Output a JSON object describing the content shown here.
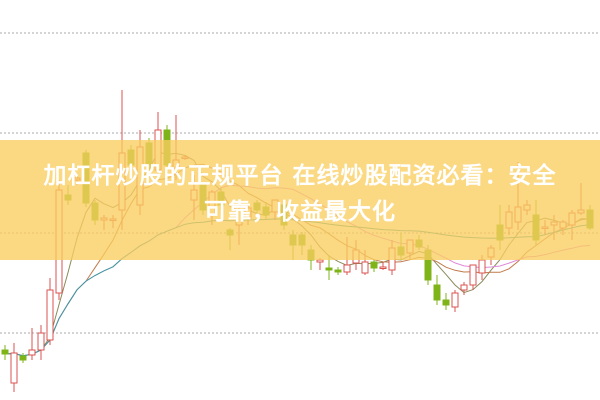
{
  "headline": {
    "line1": "加杠杆炒股的正规平台 在线炒股配资必看：安全",
    "line2": "可靠，收益最大化"
  },
  "colors": {
    "up": "#d9534f",
    "down": "#7fb418",
    "banner": "#facd5f",
    "grid": "#aaaaaa",
    "ma": [
      "#8a8a5a",
      "#c07a4a",
      "#e08ad8",
      "#3a9aa0"
    ]
  },
  "chart_data": {
    "type": "candlestick",
    "title": "",
    "xlabel": "",
    "ylabel": "",
    "grid": true,
    "axis_labels_shown": false,
    "ylim": [
      0,
      400
    ],
    "moving_averages": [
      5,
      10,
      20,
      60
    ],
    "candles_ohlc": [
      [
        50,
        55,
        40,
        46
      ],
      [
        17,
        57,
        8,
        47
      ],
      [
        44,
        47,
        37,
        40
      ],
      [
        45,
        72,
        40,
        50
      ],
      [
        50,
        75,
        40,
        67
      ],
      [
        60,
        122,
        55,
        110
      ],
      [
        107,
        220,
        100,
        210
      ],
      [
        205,
        215,
        195,
        200
      ],
      [
        220,
        225,
        215,
        222
      ],
      [
        247,
        250,
        193,
        197
      ],
      [
        197,
        200,
        175,
        180
      ],
      [
        180,
        185,
        170,
        182
      ],
      [
        180,
        185,
        172,
        181
      ],
      [
        190,
        310,
        170,
        247
      ],
      [
        250,
        255,
        230,
        235
      ],
      [
        195,
        270,
        185,
        253
      ],
      [
        257,
        262,
        230,
        235
      ],
      [
        230,
        288,
        220,
        270
      ],
      [
        270,
        275,
        230,
        235
      ],
      [
        232,
        285,
        220,
        240
      ],
      [
        243,
        245,
        240,
        243
      ],
      [
        200,
        225,
        180,
        210
      ],
      [
        215,
        218,
        185,
        190
      ],
      [
        185,
        210,
        175,
        208
      ],
      [
        208,
        212,
        190,
        195
      ],
      [
        170,
        172,
        150,
        165
      ],
      [
        175,
        200,
        155,
        190
      ],
      [
        182,
        195,
        175,
        192
      ],
      [
        197,
        200,
        185,
        190
      ],
      [
        193,
        198,
        180,
        185
      ],
      [
        188,
        200,
        180,
        200
      ],
      [
        195,
        200,
        170,
        175
      ],
      [
        165,
        170,
        140,
        155
      ],
      [
        165,
        168,
        145,
        155
      ],
      [
        150,
        155,
        130,
        140
      ],
      [
        138,
        142,
        130,
        140
      ],
      [
        132,
        145,
        120,
        130
      ],
      [
        130,
        133,
        125,
        128
      ],
      [
        128,
        163,
        125,
        135
      ],
      [
        137,
        160,
        130,
        150
      ],
      [
        127,
        150,
        125,
        138
      ],
      [
        138,
        140,
        128,
        132
      ],
      [
        133,
        138,
        130,
        133
      ],
      [
        130,
        160,
        125,
        152
      ],
      [
        153,
        167,
        140,
        145
      ],
      [
        147,
        160,
        140,
        160
      ],
      [
        160,
        165,
        150,
        153
      ],
      [
        150,
        155,
        115,
        120
      ],
      [
        115,
        125,
        95,
        100
      ],
      [
        100,
        107,
        90,
        95
      ],
      [
        93,
        110,
        88,
        107
      ],
      [
        110,
        118,
        105,
        115
      ],
      [
        115,
        135,
        110,
        135
      ],
      [
        127,
        145,
        120,
        140
      ],
      [
        143,
        155,
        135,
        152
      ],
      [
        175,
        195,
        150,
        160
      ],
      [
        172,
        195,
        165,
        188
      ],
      [
        178,
        238,
        170,
        193
      ],
      [
        190,
        200,
        185,
        195
      ],
      [
        185,
        200,
        155,
        160
      ],
      [
        173,
        180,
        165,
        173
      ],
      [
        175,
        185,
        160,
        178
      ],
      [
        172,
        180,
        165,
        178
      ],
      [
        175,
        190,
        160,
        187
      ],
      [
        187,
        217,
        185,
        190
      ],
      [
        190,
        195,
        170,
        172
      ]
    ]
  }
}
